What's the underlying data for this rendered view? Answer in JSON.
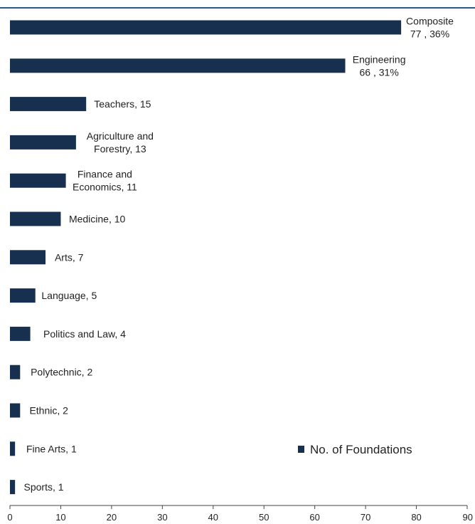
{
  "chart_data": {
    "type": "bar",
    "orientation": "horizontal",
    "categories": [
      "Composite",
      "Engineering",
      "Teachers",
      "Agriculture and Forestry",
      "Finance and Economics",
      "Medicine",
      "Arts",
      "Language",
      "Politics and Law",
      "Polytechnic",
      "Ethnic",
      "Fine Arts",
      "Sports"
    ],
    "series": [
      {
        "name": "No. of Foundations",
        "values": [
          77,
          66,
          15,
          13,
          11,
          10,
          7,
          5,
          4,
          2,
          2,
          1,
          1
        ]
      }
    ],
    "data_labels": [
      [
        "Composite",
        "77 , 36%"
      ],
      [
        "Engineering",
        "66  ,  31%"
      ],
      [
        "Teachers, 15"
      ],
      [
        "Agriculture and",
        "Forestry, 13"
      ],
      [
        "Finance and",
        "Economics, 11"
      ],
      [
        "Medicine, 10"
      ],
      [
        "Arts, 7"
      ],
      [
        "Language, 5"
      ],
      [
        "Politics and Law, 4"
      ],
      [
        "Polytechnic, 2"
      ],
      [
        "Ethnic, 2"
      ],
      [
        "Fine Arts, 1"
      ],
      [
        "Sports, 1"
      ]
    ],
    "xlim": [
      0,
      90
    ],
    "x_ticks": [
      0,
      10,
      20,
      30,
      40,
      50,
      60,
      70,
      80,
      90
    ],
    "title": "",
    "xlabel": "",
    "ylabel": "",
    "grid": false,
    "legend": {
      "position": "bottom-right",
      "entries": [
        "No. of Foundations"
      ]
    },
    "colors": {
      "bar": "#17304f",
      "top_rule": "#2c5a80",
      "axis": "#444444"
    }
  }
}
